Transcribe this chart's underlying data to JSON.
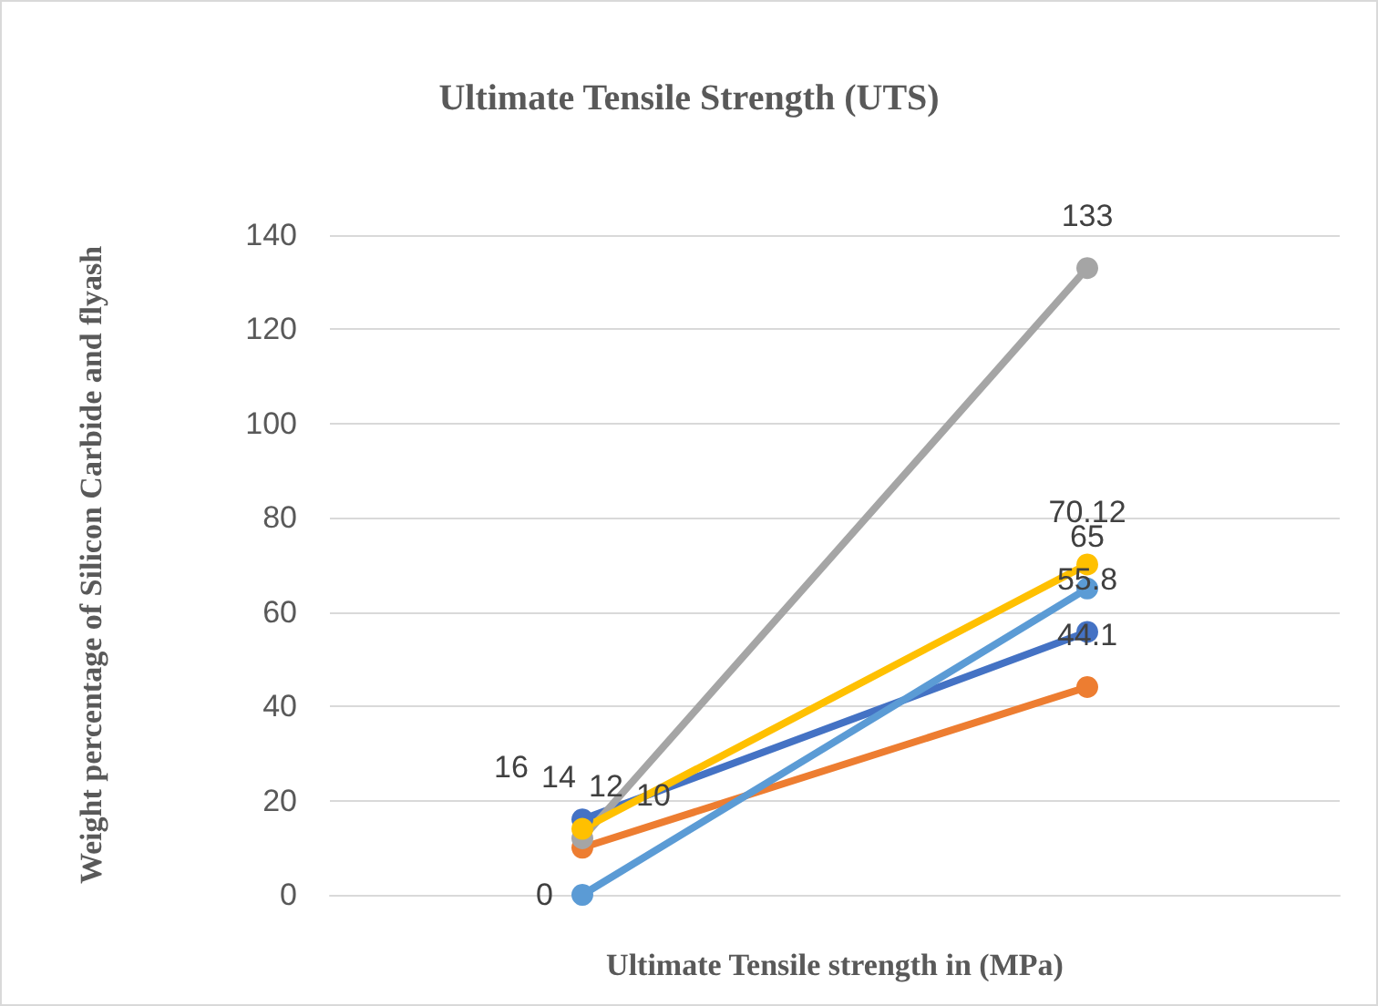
{
  "chart_data": {
    "type": "line",
    "title": "Ultimate Tensile Strength (UTS)",
    "xlabel": "Ultimate Tensile strength in (MPa)",
    "ylabel": "Weight percentage of Silicon Carbide and flyash",
    "categories": [
      null,
      null
    ],
    "series": [
      {
        "color": "#4472c4",
        "values": [
          16,
          55.8
        ]
      },
      {
        "color": "#ed7d31",
        "values": [
          10,
          44.1
        ]
      },
      {
        "color": "#a5a5a5",
        "values": [
          12,
          133
        ]
      },
      {
        "color": "#ffc000",
        "values": [
          14,
          70.12
        ]
      },
      {
        "color": "#5b9bd5",
        "values": [
          0,
          65
        ]
      }
    ],
    "ylim": [
      0,
      140
    ],
    "yticks": [
      0,
      20,
      40,
      60,
      80,
      100,
      120,
      140
    ],
    "grid": "y",
    "marker": "circle",
    "line_style": "solid",
    "data_labels": true
  }
}
